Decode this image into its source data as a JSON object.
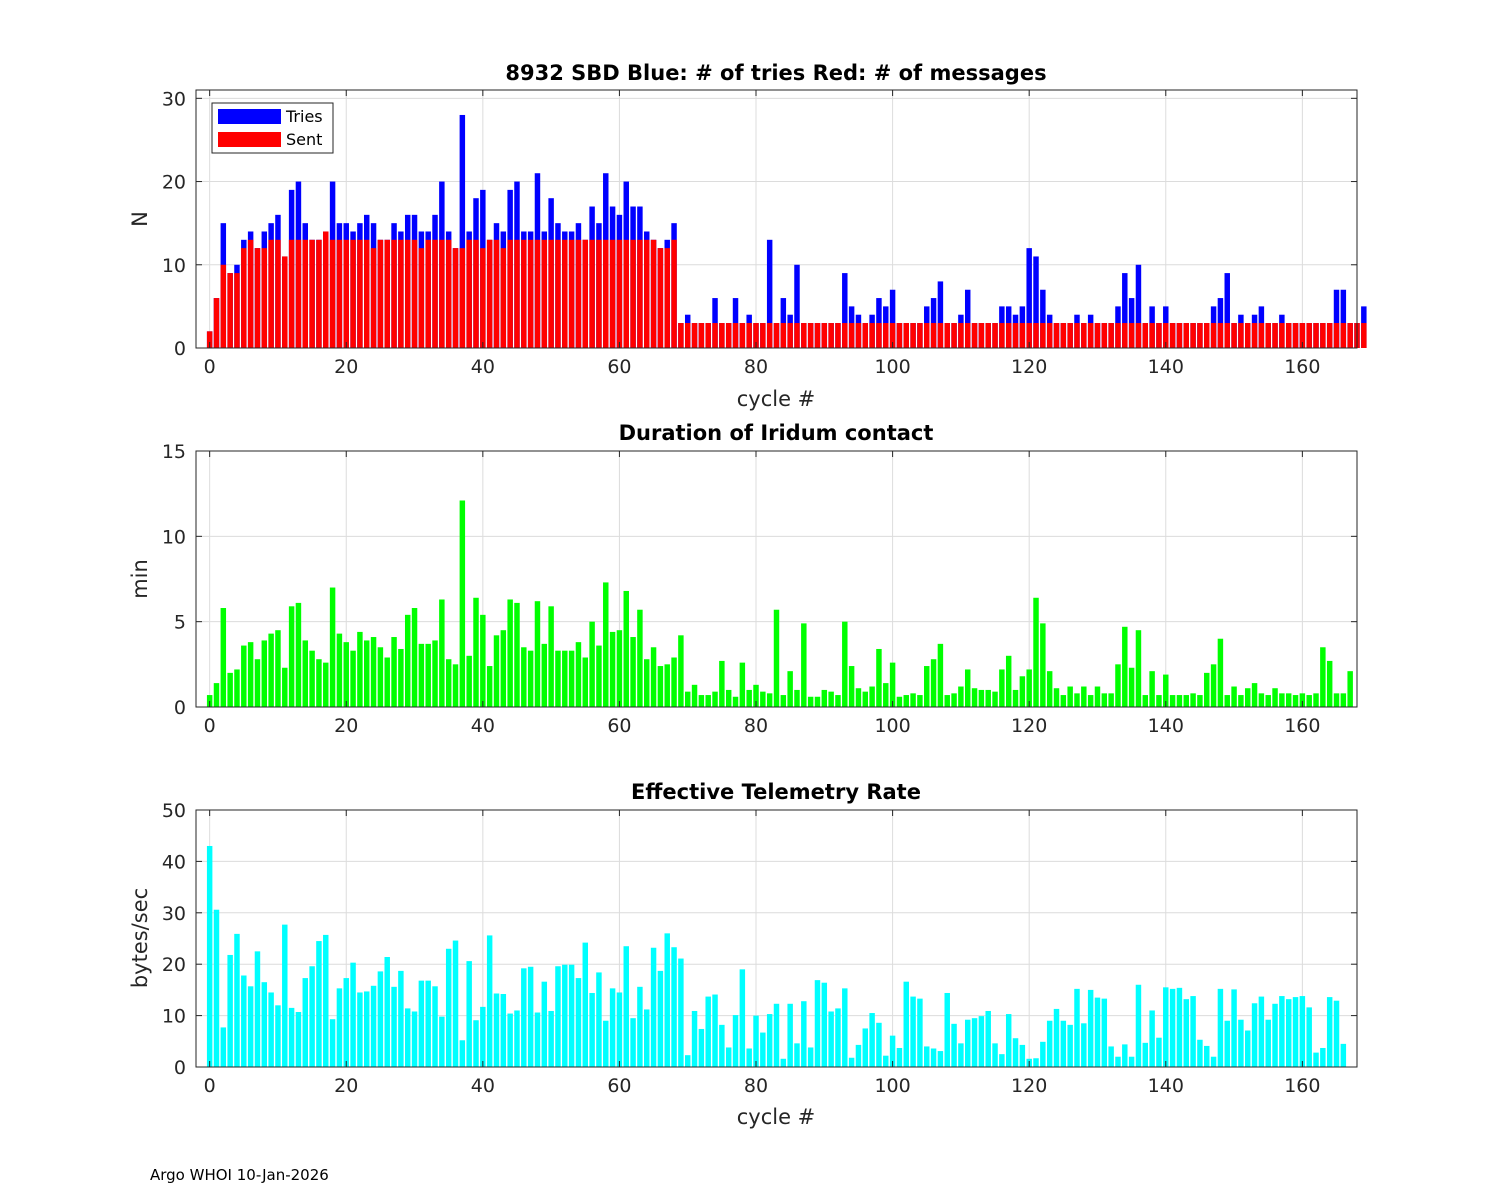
{
  "footer": "Argo WHOI 10-Jan-2026",
  "chart_data": [
    {
      "type": "bar",
      "title": "8932 SBD  Blue: # of tries   Red: # of messages",
      "xlabel": "cycle #",
      "ylabel": "N",
      "xlim": [
        -2,
        168
      ],
      "ylim": [
        0,
        31
      ],
      "yticks": [
        0,
        10,
        20,
        30
      ],
      "xticks": [
        0,
        20,
        40,
        60,
        80,
        100,
        120,
        140,
        160
      ],
      "grid": true,
      "legend": {
        "position": "top-left",
        "entries": [
          {
            "label": "Tries",
            "color": "#0000ff"
          },
          {
            "label": "Sent",
            "color": "#ff0000"
          }
        ]
      },
      "series": [
        {
          "name": "Tries",
          "color": "#0000ff",
          "values": [
            2,
            6,
            15,
            9,
            10,
            13,
            14,
            12,
            14,
            15,
            16,
            11,
            19,
            20,
            15,
            13,
            13,
            14,
            20,
            15,
            15,
            14,
            15,
            16,
            15,
            13,
            13,
            15,
            14,
            16,
            16,
            14,
            14,
            16,
            20,
            14,
            12,
            28,
            14,
            18,
            19,
            13,
            15,
            14,
            19,
            20,
            14,
            14,
            21,
            14,
            18,
            15,
            14,
            14,
            15,
            13,
            17,
            15,
            21,
            17,
            16,
            20,
            17,
            17,
            14,
            13,
            12,
            13,
            15,
            3,
            4,
            3,
            3,
            3,
            6,
            3,
            3,
            6,
            3,
            4,
            3,
            3,
            13,
            3,
            6,
            4,
            10,
            3,
            3,
            3,
            3,
            3,
            3,
            9,
            5,
            4,
            3,
            4,
            6,
            5,
            7,
            3,
            3,
            3,
            3,
            5,
            6,
            8,
            3,
            3,
            4,
            7,
            3,
            3,
            3,
            3,
            5,
            5,
            4,
            5,
            12,
            11,
            7,
            4,
            3,
            3,
            3,
            4,
            3,
            4,
            3,
            3,
            3,
            5,
            9,
            6,
            10,
            3,
            5,
            3,
            5,
            3,
            3,
            3,
            3,
            3,
            3,
            5,
            6,
            9,
            3,
            4,
            3,
            4,
            5,
            3,
            3,
            4,
            3,
            3,
            3,
            3,
            3,
            3,
            3,
            7,
            7,
            3,
            3,
            5
          ]
        },
        {
          "name": "Sent",
          "color": "#ff0000",
          "values": [
            2,
            6,
            10,
            9,
            9,
            12,
            13,
            12,
            12,
            13,
            13,
            11,
            13,
            13,
            13,
            13,
            13,
            14,
            13,
            13,
            13,
            13,
            13,
            13,
            12,
            13,
            13,
            13,
            13,
            13,
            13,
            12,
            13,
            13,
            13,
            13,
            12,
            12,
            13,
            13,
            12,
            13,
            13,
            12,
            13,
            13,
            13,
            13,
            13,
            13,
            13,
            13,
            13,
            13,
            13,
            13,
            13,
            13,
            13,
            13,
            13,
            13,
            13,
            13,
            13,
            13,
            12,
            12,
            13,
            3,
            3,
            3,
            3,
            3,
            3,
            3,
            3,
            3,
            3,
            3,
            3,
            3,
            3,
            3,
            3,
            3,
            3,
            3,
            3,
            3,
            3,
            3,
            3,
            3,
            3,
            3,
            3,
            3,
            3,
            3,
            3,
            3,
            3,
            3,
            3,
            3,
            3,
            3,
            3,
            3,
            3,
            3,
            3,
            3,
            3,
            3,
            3,
            3,
            3,
            3,
            3,
            3,
            3,
            3,
            3,
            3,
            3,
            3,
            3,
            3,
            3,
            3,
            3,
            3,
            3,
            3,
            3,
            3,
            3,
            3,
            3,
            3,
            3,
            3,
            3,
            3,
            3,
            3,
            3,
            3,
            3,
            3,
            3,
            3,
            3,
            3,
            3,
            3,
            3,
            3,
            3,
            3,
            3,
            3,
            3,
            3,
            3,
            3,
            3,
            3
          ]
        }
      ]
    },
    {
      "type": "bar",
      "title": "Duration of Iridum contact",
      "xlabel": "",
      "ylabel": "min",
      "xlim": [
        -2,
        168
      ],
      "ylim": [
        0,
        15
      ],
      "yticks": [
        0,
        5,
        10,
        15
      ],
      "xticks": [
        0,
        20,
        40,
        60,
        80,
        100,
        120,
        140,
        160
      ],
      "grid": true,
      "color": "#00ff00",
      "values": [
        0.7,
        1.4,
        5.8,
        2.0,
        2.2,
        3.6,
        3.8,
        2.8,
        3.9,
        4.3,
        4.5,
        2.3,
        5.9,
        6.1,
        3.9,
        3.3,
        2.8,
        2.6,
        7.0,
        4.3,
        3.8,
        3.3,
        4.4,
        3.9,
        4.1,
        3.5,
        2.9,
        4.1,
        3.4,
        5.4,
        5.8,
        3.7,
        3.7,
        3.9,
        6.3,
        2.8,
        2.5,
        12.1,
        3.0,
        6.4,
        5.4,
        2.4,
        4.2,
        4.5,
        6.3,
        6.1,
        3.5,
        3.3,
        6.2,
        3.7,
        5.9,
        3.3,
        3.3,
        3.3,
        3.8,
        2.9,
        5.0,
        3.6,
        7.3,
        4.4,
        4.5,
        6.8,
        4.1,
        5.7,
        2.8,
        3.5,
        2.4,
        2.5,
        2.9,
        4.2,
        0.9,
        1.3,
        0.7,
        0.7,
        0.9,
        2.7,
        1.0,
        0.6,
        2.6,
        1.0,
        1.3,
        0.9,
        0.8,
        5.7,
        0.7,
        2.1,
        1.0,
        4.9,
        0.6,
        0.6,
        1.0,
        0.9,
        0.7,
        5.0,
        2.4,
        1.1,
        0.9,
        1.2,
        3.4,
        1.4,
        2.6,
        0.6,
        0.7,
        0.8,
        0.7,
        2.4,
        2.8,
        3.7,
        0.7,
        0.8,
        1.2,
        2.2,
        1.1,
        1.0,
        1.0,
        0.9,
        2.2,
        3.0,
        1.0,
        1.8,
        2.2,
        6.4,
        4.9,
        2.1,
        1.1,
        0.7,
        1.2,
        0.8,
        1.2,
        0.7,
        1.2,
        0.8,
        0.8,
        2.5,
        4.7,
        2.3,
        4.5,
        0.7,
        2.1,
        0.7,
        1.9,
        0.7,
        0.7,
        0.7,
        0.8,
        0.7,
        2.0,
        2.5,
        4.0,
        0.7,
        1.2,
        0.7,
        1.1,
        1.4,
        0.8,
        0.7,
        1.1,
        0.8,
        0.8,
        0.7,
        0.8,
        0.7,
        0.8,
        3.5,
        2.7,
        0.8,
        0.8,
        2.1
      ]
    },
    {
      "type": "bar",
      "title": "Effective Telemetry Rate",
      "xlabel": "cycle #",
      "ylabel": "bytes/sec",
      "xlim": [
        -2,
        168
      ],
      "ylim": [
        0,
        50
      ],
      "yticks": [
        0,
        10,
        20,
        30,
        40,
        50
      ],
      "xticks": [
        0,
        20,
        40,
        60,
        80,
        100,
        120,
        140,
        160
      ],
      "grid": true,
      "color": "#00ffff",
      "values": [
        43,
        30.6,
        7.7,
        21.8,
        25.9,
        17.8,
        15.7,
        22.5,
        16.5,
        14.5,
        12.0,
        27.7,
        11.5,
        10.7,
        17.3,
        19.6,
        24.5,
        25.7,
        9.3,
        15.3,
        17.3,
        20.3,
        14.5,
        14.7,
        15.8,
        18.6,
        21.4,
        15.6,
        18.7,
        11.4,
        10.8,
        16.8,
        16.8,
        15.7,
        9.8,
        23.0,
        24.6,
        5.2,
        20.6,
        9.1,
        11.7,
        25.6,
        14.3,
        14.2,
        10.4,
        11.0,
        19.2,
        19.5,
        10.6,
        16.6,
        10.9,
        19.6,
        19.9,
        19.9,
        17.3,
        24.2,
        14.4,
        18.4,
        9.0,
        15.3,
        14.5,
        23.5,
        9.5,
        15.6,
        11.2,
        23.2,
        18.7,
        26.0,
        23.3,
        21.1,
        2.3,
        10.9,
        7.4,
        13.7,
        14.1,
        8.2,
        3.8,
        10.1,
        19.0,
        3.6,
        10.0,
        6.7,
        10.3,
        12.3,
        1.6,
        12.3,
        4.6,
        12.8,
        3.8,
        16.9,
        16.4,
        10.8,
        11.4,
        15.3,
        1.8,
        4.3,
        7.5,
        10.5,
        8.6,
        2.2,
        6.1,
        3.7,
        16.6,
        13.7,
        13.3,
        4.0,
        3.6,
        3.1,
        14.4,
        8.4,
        4.6,
        9.2,
        9.5,
        9.9,
        10.9,
        4.6,
        2.5,
        10.3,
        5.6,
        4.3,
        1.6,
        1.7,
        4.9,
        9.0,
        11.3,
        9.0,
        8.2,
        15.2,
        8.5,
        15.0,
        13.5,
        13.3,
        4.0,
        2.0,
        4.4,
        2.0,
        16.0,
        4.7,
        11.0,
        5.7,
        15.5,
        15.2,
        15.4,
        13.2,
        13.8,
        5.3,
        4.1,
        2.0,
        15.2,
        9.0,
        15.1,
        9.2,
        7.1,
        12.4,
        13.7,
        9.2,
        12.3,
        13.8,
        13.2,
        13.6,
        13.8,
        11.6,
        2.8,
        3.7,
        13.6,
        12.9,
        4.5
      ]
    }
  ]
}
